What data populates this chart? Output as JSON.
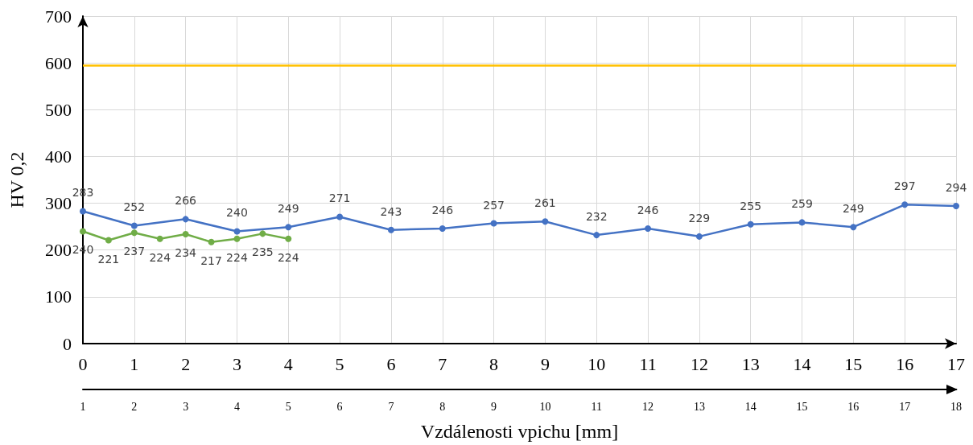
{
  "chart_data": {
    "type": "line",
    "xlabel": "Vzdálenosti vpichu [mm]",
    "ylabel": "HV 0,2",
    "xlim": [
      0,
      17
    ],
    "xticks": [
      0,
      1,
      2,
      3,
      4,
      5,
      6,
      7,
      8,
      9,
      10,
      11,
      12,
      13,
      14,
      15,
      16,
      17
    ],
    "x2lim": [
      1,
      18
    ],
    "x2ticks": [
      1,
      2,
      3,
      4,
      5,
      6,
      7,
      8,
      9,
      10,
      11,
      12,
      13,
      14,
      15,
      16,
      17,
      18
    ],
    "ylim": [
      0,
      700
    ],
    "yticks": [
      0,
      100,
      200,
      300,
      400,
      500,
      600,
      700
    ],
    "series": [
      {
        "color": "#4472c4",
        "x": [
          0,
          1,
          2,
          3,
          4,
          5,
          6,
          7,
          8,
          9,
          10,
          11,
          12,
          13,
          14,
          15,
          16,
          17
        ],
        "values": [
          283,
          252,
          266,
          240,
          249,
          271,
          243,
          246,
          257,
          261,
          232,
          246,
          229,
          255,
          259,
          249,
          297,
          294
        ]
      },
      {
        "color": "#70ad47",
        "x": [
          0,
          0.5,
          1,
          1.5,
          2,
          2.5,
          3,
          3.5,
          4
        ],
        "values": [
          240,
          221,
          237,
          224,
          234,
          217,
          224,
          235,
          224
        ]
      }
    ],
    "ref_lines": [
      {
        "axis": "y",
        "value": 595,
        "color": "#ffc000"
      }
    ],
    "grid": true,
    "marker": "circle",
    "line_style": "solid",
    "data_labels": true
  }
}
